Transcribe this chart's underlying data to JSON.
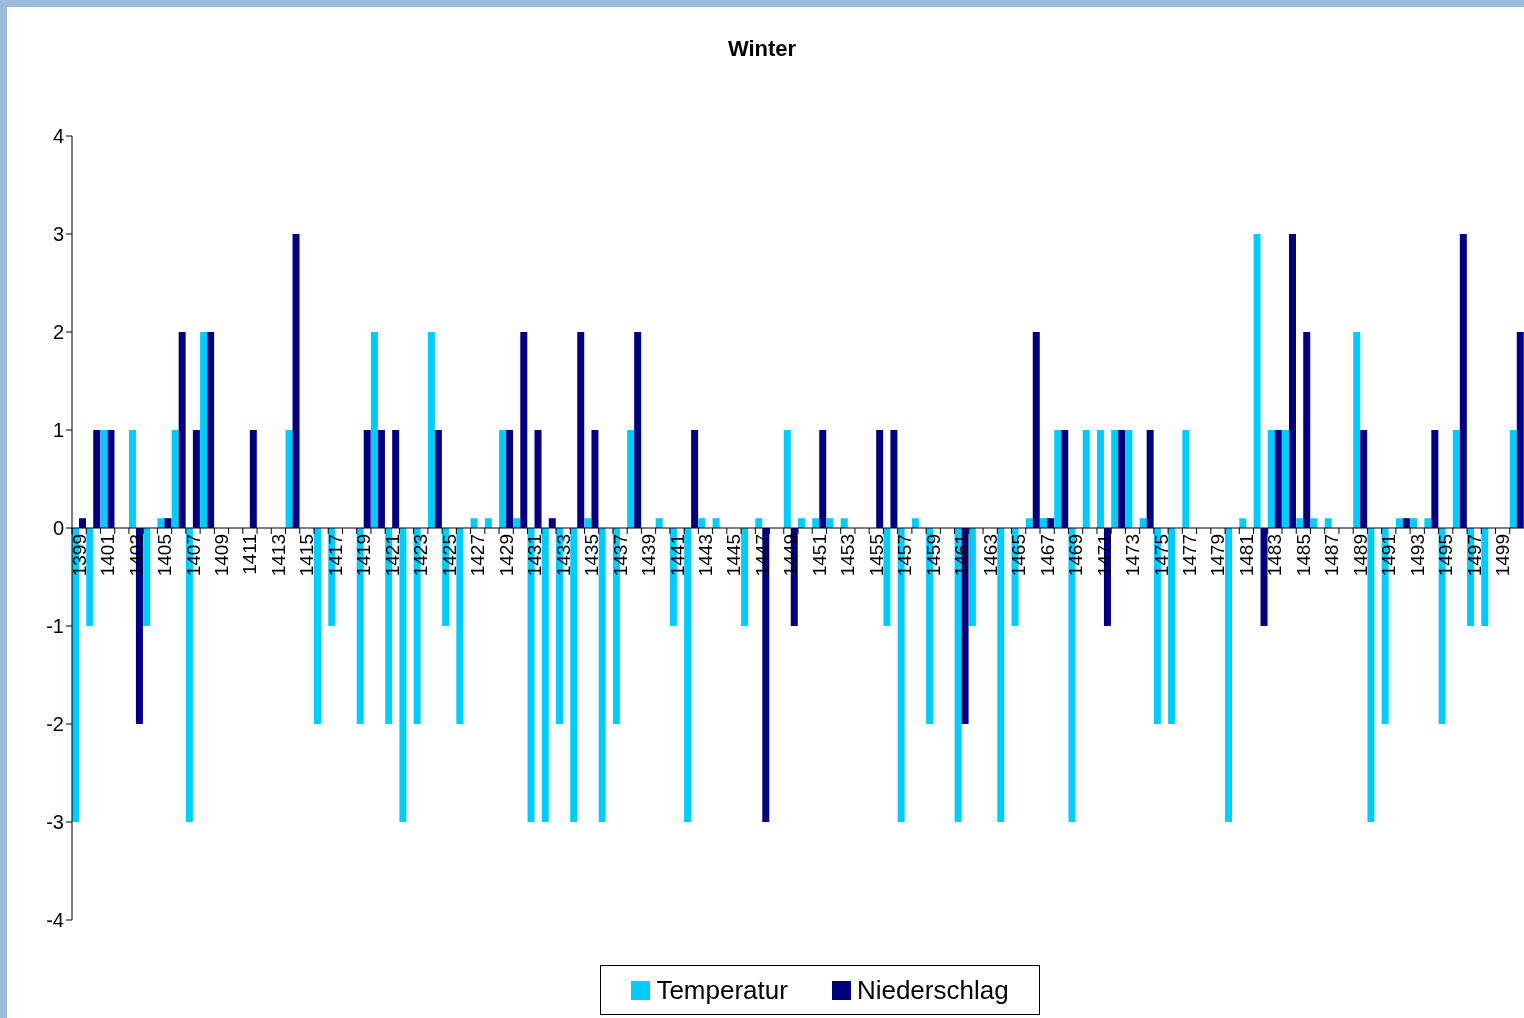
{
  "chart_data": {
    "type": "bar",
    "title": "Winter",
    "categories": [
      "1399",
      null,
      "1401",
      null,
      "1403",
      null,
      "1405",
      null,
      "1407",
      null,
      "1409",
      null,
      "1411",
      null,
      "1413",
      null,
      "1415",
      null,
      "1417",
      null,
      "1419",
      null,
      "1421",
      null,
      "1423",
      null,
      "1425",
      null,
      "1427",
      null,
      "1429",
      null,
      "1431",
      null,
      "1433",
      null,
      "1435",
      null,
      "1437",
      null,
      "1439",
      null,
      "1441",
      null,
      "1443",
      null,
      "1445",
      null,
      "1447",
      null,
      "1449",
      null,
      "1451",
      null,
      "1453",
      null,
      "1455",
      null,
      "1457",
      null,
      "1459",
      null,
      "1461",
      null,
      "1463",
      null,
      "1465",
      null,
      "1467",
      null,
      "1469",
      null,
      "1471",
      null,
      "1473",
      null,
      "1475",
      null,
      "1477",
      null,
      "1479",
      null,
      "1481",
      null,
      "1483",
      null,
      "1485",
      null,
      "1487",
      null,
      "1489",
      null,
      "1491",
      null,
      "1493",
      null,
      "1495",
      null,
      "1497",
      null,
      "1499",
      null
    ],
    "series": [
      {
        "name": "Temperatur",
        "color": "#00ccff",
        "values": [
          -3,
          -1,
          1,
          0,
          1,
          -1,
          0.1,
          1,
          -3,
          2,
          0,
          0,
          0,
          0,
          0,
          1,
          0,
          -2,
          -1,
          0,
          -2,
          2,
          -2,
          -3,
          -2,
          2,
          -1,
          -2,
          0.1,
          0.1,
          1,
          0.1,
          -3,
          -3,
          -2,
          -3,
          0.1,
          -3,
          -2,
          1,
          0,
          0.1,
          -1,
          -3,
          0.1,
          0.1,
          0,
          -1,
          0.1,
          0,
          1,
          0.1,
          0.1,
          0.1,
          0.1,
          0,
          0,
          -1,
          -3,
          0.1,
          -2,
          0,
          -3,
          -1,
          0,
          -3,
          -1,
          0.1,
          0.1,
          1,
          -3,
          1,
          1,
          1,
          1,
          0.1,
          -2,
          -2,
          1,
          0,
          0,
          -3,
          0.1,
          3,
          1,
          1,
          0.1,
          0.1,
          0.1,
          0,
          2,
          -3,
          -2,
          0.1,
          0.1,
          0.1,
          -2,
          1,
          -1,
          -1,
          0,
          1
        ]
      },
      {
        "name": "Niederschlag",
        "color": "#000080",
        "values": [
          0.1,
          1,
          1,
          0,
          -2,
          0,
          0.1,
          2,
          1,
          2,
          0,
          0,
          1,
          0,
          0,
          3,
          0,
          0,
          0,
          0,
          1,
          1,
          1,
          0,
          0,
          1,
          0,
          0,
          0,
          0,
          1,
          2,
          1,
          0.1,
          0,
          2,
          1,
          0,
          0,
          2,
          0,
          0,
          0,
          1,
          0,
          0,
          0,
          0,
          -3,
          0,
          -1,
          0,
          1,
          0,
          0,
          0,
          1,
          1,
          0,
          0,
          0,
          0,
          -2,
          0,
          0,
          0,
          0,
          2,
          0.1,
          1,
          0,
          0,
          -1,
          1,
          0,
          1,
          0,
          0,
          0,
          0,
          0,
          0,
          0,
          -1,
          1,
          3,
          2,
          0,
          0,
          0,
          1,
          0,
          0,
          0.1,
          0,
          1,
          0,
          3,
          0,
          0,
          0,
          2
        ]
      }
    ],
    "ylim": [
      -4,
      4
    ],
    "yticks": [
      -4,
      -3,
      -2,
      -1,
      0,
      1,
      2,
      3,
      4
    ],
    "grid": false,
    "legend": "bottom"
  }
}
